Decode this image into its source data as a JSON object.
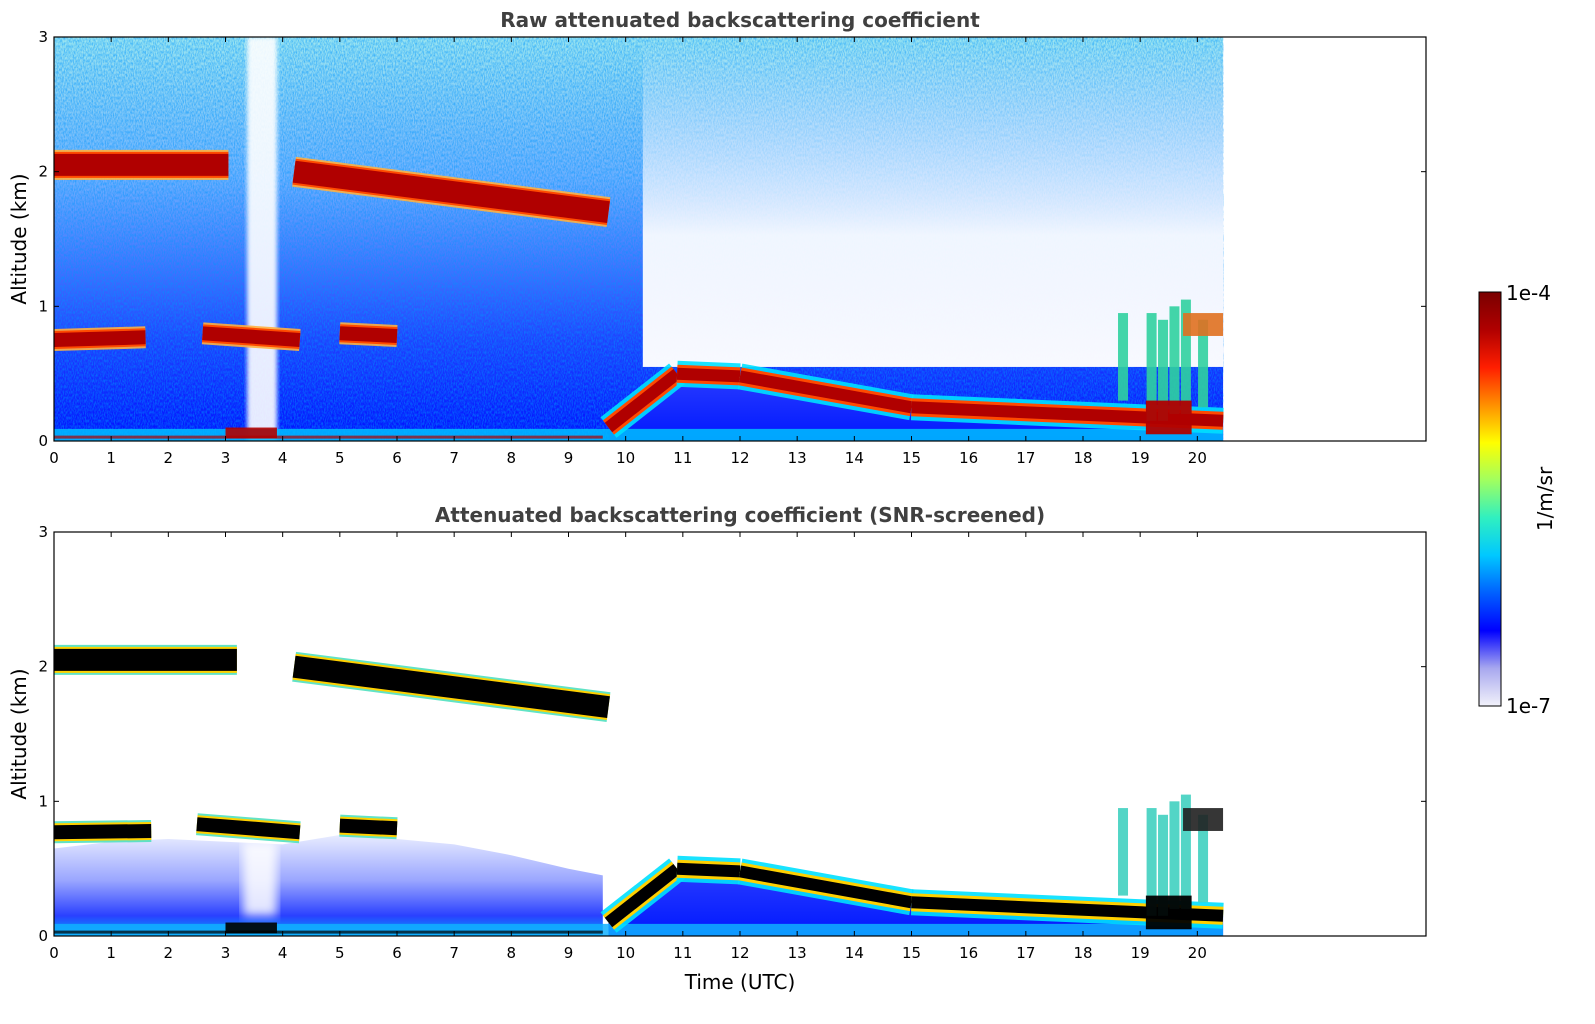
{
  "chart_data": [
    {
      "type": "heatmap",
      "title": "Raw attenuated backscattering coefficient",
      "xlabel": "",
      "ylabel": "Altitude (km)",
      "xlim": [
        0,
        24
      ],
      "ylim": [
        0,
        3
      ],
      "xticks": [
        "0",
        "1",
        "2",
        "3",
        "4",
        "5",
        "6",
        "7",
        "8",
        "9",
        "10",
        "11",
        "12",
        "13",
        "14",
        "15",
        "16",
        "17",
        "18",
        "19",
        "20"
      ],
      "yticks": [
        "0",
        "1",
        "2",
        "3"
      ],
      "data_extent_hours": [
        0,
        20.45
      ],
      "features": [
        {
          "name": "upper cloud layer",
          "segments": [
            [
              0,
              3.05,
              2.05,
              2.05
            ],
            [
              4.2,
              9.7,
              2.0,
              1.7
            ]
          ]
        },
        {
          "name": "mid cloud layer",
          "segments": [
            [
              0,
              1.6,
              0.75,
              0.77
            ],
            [
              2.6,
              4.3,
              0.8,
              0.75
            ],
            [
              5.0,
              6.0,
              0.8,
              0.78
            ]
          ]
        },
        {
          "name": "boundary layer top",
          "segments": [
            [
              9.7,
              10.9,
              0.1,
              0.5
            ],
            [
              10.9,
              12.0,
              0.5,
              0.48
            ],
            [
              12.0,
              15.0,
              0.48,
              0.25
            ],
            [
              15.0,
              20.45,
              0.25,
              0.15
            ]
          ]
        },
        {
          "name": "late convective cloud",
          "segments": [
            [
              18.6,
              20.45,
              0.2,
              0.95
            ]
          ]
        }
      ]
    },
    {
      "type": "heatmap",
      "title": "Attenuated backscattering coefficient (SNR-screened)",
      "xlabel": "Time (UTC)",
      "ylabel": "Altitude (km)",
      "xlim": [
        0,
        24
      ],
      "ylim": [
        0,
        3
      ],
      "xticks": [
        "0",
        "1",
        "2",
        "3",
        "4",
        "5",
        "6",
        "7",
        "8",
        "9",
        "10",
        "11",
        "12",
        "13",
        "14",
        "15",
        "16",
        "17",
        "18",
        "19",
        "20"
      ],
      "yticks": [
        "0",
        "1",
        "2",
        "3"
      ],
      "data_extent_hours": [
        0,
        20.45
      ],
      "features": [
        {
          "name": "upper cloud layer",
          "segments": [
            [
              0,
              3.2,
              2.05,
              2.05
            ],
            [
              4.2,
              9.7,
              2.0,
              1.7
            ]
          ]
        },
        {
          "name": "mid cloud layer",
          "segments": [
            [
              0,
              1.7,
              0.77,
              0.78
            ],
            [
              2.5,
              4.3,
              0.83,
              0.77
            ],
            [
              5.0,
              6.0,
              0.82,
              0.8
            ]
          ]
        },
        {
          "name": "boundary layer top",
          "segments": [
            [
              9.7,
              10.9,
              0.1,
              0.5
            ],
            [
              10.9,
              12.0,
              0.5,
              0.48
            ],
            [
              12.0,
              15.0,
              0.48,
              0.25
            ],
            [
              15.0,
              20.45,
              0.25,
              0.15
            ]
          ]
        },
        {
          "name": "late convective cloud",
          "segments": [
            [
              18.6,
              20.45,
              0.2,
              0.95
            ]
          ]
        }
      ]
    }
  ],
  "colorbar": {
    "label": "1/m/sr",
    "max_label": "1e-4",
    "min_label": "1e-7",
    "stops": [
      "#f2f2fa",
      "#a8a8ef",
      "#0000ff",
      "#0060ff",
      "#00c8ff",
      "#30f0c0",
      "#a0ff60",
      "#ffff00",
      "#ff9000",
      "#ff1e00",
      "#b00000",
      "#7a0000"
    ]
  }
}
